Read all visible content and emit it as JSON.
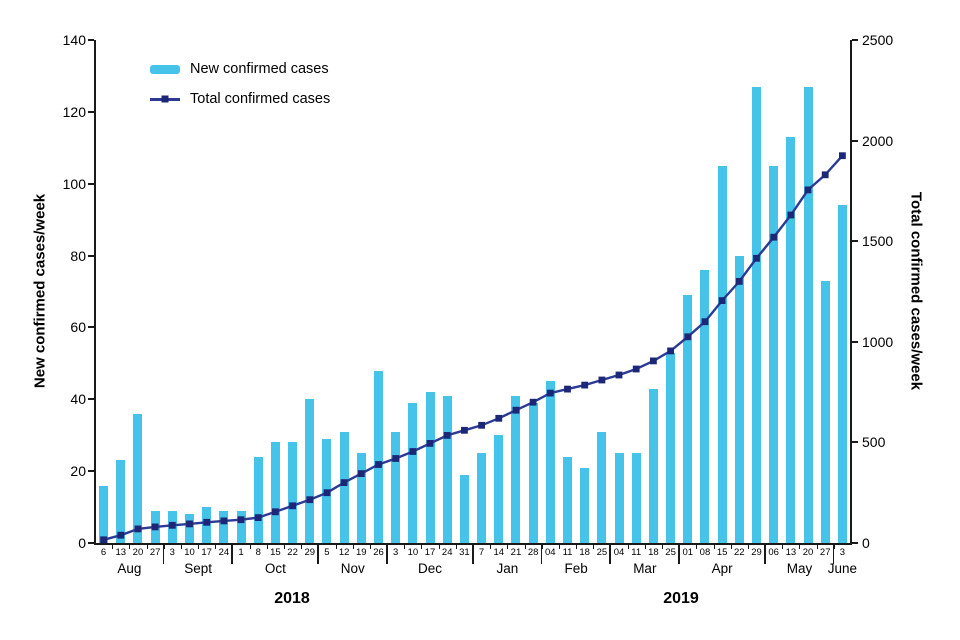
{
  "colors": {
    "bar": "#45c3e9",
    "line": "#2b3a94",
    "marker": "#1c2777",
    "axis": "#1a1a1a"
  },
  "legend": {
    "items": [
      {
        "label": "New confirmed cases",
        "swatch": "bar-swatch"
      },
      {
        "label": "Total confirmed cases",
        "swatch": "line-with-square-marker-swatch"
      }
    ]
  },
  "left_axis": {
    "title": "New confirmed cases/week",
    "ticks": [
      0,
      20,
      40,
      60,
      80,
      100,
      120,
      140
    ],
    "max": 140
  },
  "right_axis": {
    "title": "Total confirmed cases/week",
    "ticks": [
      0,
      500,
      1000,
      1500,
      2000,
      2500
    ],
    "max": 2500
  },
  "x_axis": {
    "months": [
      {
        "label": "Aug",
        "dates": [
          "6",
          "13",
          "20",
          "27"
        ]
      },
      {
        "label": "Sept",
        "dates": [
          "3",
          "10",
          "17",
          "24"
        ]
      },
      {
        "label": "Oct",
        "dates": [
          "1",
          "8",
          "15",
          "22",
          "29"
        ]
      },
      {
        "label": "Nov",
        "dates": [
          "5",
          "12",
          "19",
          "26"
        ]
      },
      {
        "label": "Dec",
        "dates": [
          "3",
          "10",
          "17",
          "24",
          "31"
        ]
      },
      {
        "label": "Jan",
        "dates": [
          "7",
          "14",
          "21",
          "28"
        ]
      },
      {
        "label": "Feb",
        "dates": [
          "04",
          "11",
          "18",
          "25"
        ]
      },
      {
        "label": "Mar",
        "dates": [
          "04",
          "11",
          "18",
          "25"
        ]
      },
      {
        "label": "Apr",
        "dates": [
          "01",
          "08",
          "15",
          "22",
          "29"
        ]
      },
      {
        "label": "May",
        "dates": [
          "06",
          "13",
          "20",
          "27"
        ]
      },
      {
        "label": "June",
        "dates": [
          "3"
        ]
      }
    ],
    "years": [
      "2018",
      "2019"
    ]
  },
  "chart_data": {
    "type": "bar",
    "subtype": "combo-bar-line-dual-axis",
    "categories": [
      "Aug 6",
      "Aug 13",
      "Aug 20",
      "Aug 27",
      "Sept 3",
      "Sept 10",
      "Sept 17",
      "Sept 24",
      "Oct 1",
      "Oct 8",
      "Oct 15",
      "Oct 22",
      "Oct 29",
      "Nov 5",
      "Nov 12",
      "Nov 19",
      "Nov 26",
      "Dec 3",
      "Dec 10",
      "Dec 17",
      "Dec 24",
      "Dec 31",
      "Jan 7",
      "Jan 14",
      "Jan 21",
      "Jan 28",
      "Feb 04",
      "Feb 11",
      "Feb 18",
      "Feb 25",
      "Mar 04",
      "Mar 11",
      "Mar 18",
      "Mar 25",
      "Apr 01",
      "Apr 08",
      "Apr 15",
      "Apr 22",
      "Apr 29",
      "May 06",
      "May 13",
      "May 20",
      "May 27",
      "June 3"
    ],
    "series": [
      {
        "name": "New confirmed cases",
        "type": "bar",
        "axis": "left",
        "values": [
          16,
          23,
          36,
          9,
          9,
          8,
          10,
          9,
          9,
          24,
          28,
          28,
          40,
          29,
          31,
          25,
          48,
          31,
          39,
          42,
          41,
          19,
          25,
          30,
          41,
          39,
          45,
          24,
          21,
          31,
          25,
          25,
          43,
          53,
          69,
          76,
          105,
          80,
          127,
          105,
          113,
          127,
          73,
          94
        ]
      },
      {
        "name": "Total confirmed cases",
        "type": "line",
        "axis": "right",
        "values": [
          16,
          39,
          70,
          80,
          88,
          95,
          103,
          110,
          116,
          126,
          155,
          185,
          215,
          250,
          300,
          345,
          390,
          420,
          455,
          495,
          535,
          560,
          585,
          620,
          660,
          700,
          745,
          765,
          785,
          810,
          835,
          865,
          905,
          955,
          1025,
          1100,
          1205,
          1300,
          1415,
          1520,
          1630,
          1755,
          1830,
          1925
        ]
      }
    ],
    "ylabel_left": "New confirmed cases/week",
    "ylabel_right": "Total confirmed cases/week",
    "left_ylim": [
      0,
      140
    ],
    "right_ylim": [
      0,
      2500
    ],
    "grid": false,
    "legend_position": "top-left-inside"
  }
}
